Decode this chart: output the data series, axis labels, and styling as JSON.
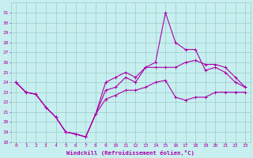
{
  "xlabel": "Windchill (Refroidissement éolien,°C)",
  "background_color": "#c8efef",
  "line_color": "#aa00aa",
  "grid_color": "#99cccc",
  "x": [
    0,
    1,
    2,
    3,
    4,
    5,
    6,
    7,
    8,
    9,
    10,
    11,
    12,
    13,
    14,
    15,
    16,
    17,
    18,
    19,
    20,
    21,
    22,
    23
  ],
  "y_actual": [
    24.0,
    23.0,
    22.8,
    21.5,
    20.5,
    19.0,
    18.8,
    18.5,
    20.8,
    23.2,
    23.5,
    24.5,
    24.0,
    25.5,
    26.0,
    31.0,
    28.0,
    27.3,
    27.3,
    25.2,
    25.5,
    25.0,
    24.0,
    23.5
  ],
  "y_min": [
    24.0,
    23.0,
    22.8,
    21.5,
    20.5,
    19.0,
    18.8,
    18.5,
    20.8,
    22.3,
    22.7,
    23.2,
    23.2,
    23.5,
    24.0,
    24.2,
    22.5,
    22.2,
    22.5,
    22.5,
    23.0,
    23.0,
    23.0,
    23.0
  ],
  "y_max": [
    24.0,
    23.0,
    22.8,
    21.5,
    20.5,
    19.0,
    18.8,
    18.5,
    20.8,
    24.0,
    24.5,
    25.0,
    24.5,
    25.5,
    25.5,
    25.5,
    25.5,
    26.0,
    26.2,
    25.8,
    25.8,
    25.5,
    24.5,
    23.5
  ],
  "ylim": [
    18,
    32
  ],
  "xlim": [
    -0.5,
    23.5
  ],
  "yticks": [
    18,
    19,
    20,
    21,
    22,
    23,
    24,
    25,
    26,
    27,
    28,
    29,
    30,
    31
  ],
  "xticks": [
    0,
    1,
    2,
    3,
    4,
    5,
    6,
    7,
    8,
    9,
    10,
    11,
    12,
    13,
    14,
    15,
    16,
    17,
    18,
    19,
    20,
    21,
    22,
    23
  ]
}
